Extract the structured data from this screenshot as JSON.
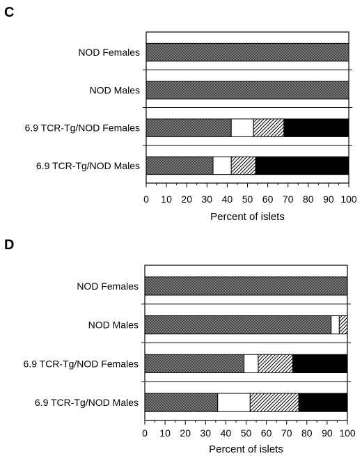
{
  "figure": {
    "panels": [
      "C",
      "D"
    ]
  },
  "chart_data": [
    {
      "panel": "C",
      "type": "bar",
      "orientation": "horizontal",
      "stacked": true,
      "categories": [
        "NOD Females",
        "NOD Males",
        "6.9 TCR-Tg/NOD Females",
        "6.9 TCR-Tg/NOD Males"
      ],
      "series": [
        {
          "values": [
            100,
            100,
            42,
            33
          ],
          "fill": "crosshatch",
          "color": "#7a7a7a"
        },
        {
          "values": [
            0,
            0,
            11,
            9
          ],
          "fill": "solid",
          "color": "#ffffff"
        },
        {
          "values": [
            0,
            0,
            15,
            12
          ],
          "fill": "diagonal-hatch",
          "color": "#ffffff"
        },
        {
          "values": [
            0,
            0,
            32,
            46
          ],
          "fill": "solid",
          "color": "#000000"
        }
      ],
      "xlabel": "Percent of islets",
      "xlim": [
        0,
        100
      ],
      "xticks": [
        0,
        10,
        20,
        30,
        40,
        50,
        60,
        70,
        80,
        90,
        100
      ],
      "grid": false,
      "legend": "none"
    },
    {
      "panel": "D",
      "type": "bar",
      "orientation": "horizontal",
      "stacked": true,
      "categories": [
        "NOD Females",
        "NOD Males",
        "6.9 TCR-Tg/NOD Females",
        "6.9 TCR-Tg/NOD Males"
      ],
      "series": [
        {
          "values": [
            100,
            92,
            49,
            36
          ],
          "fill": "crosshatch",
          "color": "#7a7a7a"
        },
        {
          "values": [
            0,
            4,
            7,
            16
          ],
          "fill": "solid",
          "color": "#ffffff"
        },
        {
          "values": [
            0,
            4,
            17,
            24
          ],
          "fill": "diagonal-hatch",
          "color": "#ffffff"
        },
        {
          "values": [
            0,
            0,
            27,
            24
          ],
          "fill": "solid",
          "color": "#000000"
        }
      ],
      "xlabel": "Percent of islets",
      "xlim": [
        0,
        100
      ],
      "xticks": [
        0,
        10,
        20,
        30,
        40,
        50,
        60,
        70,
        80,
        90,
        100
      ],
      "grid": false,
      "legend": "none"
    }
  ]
}
